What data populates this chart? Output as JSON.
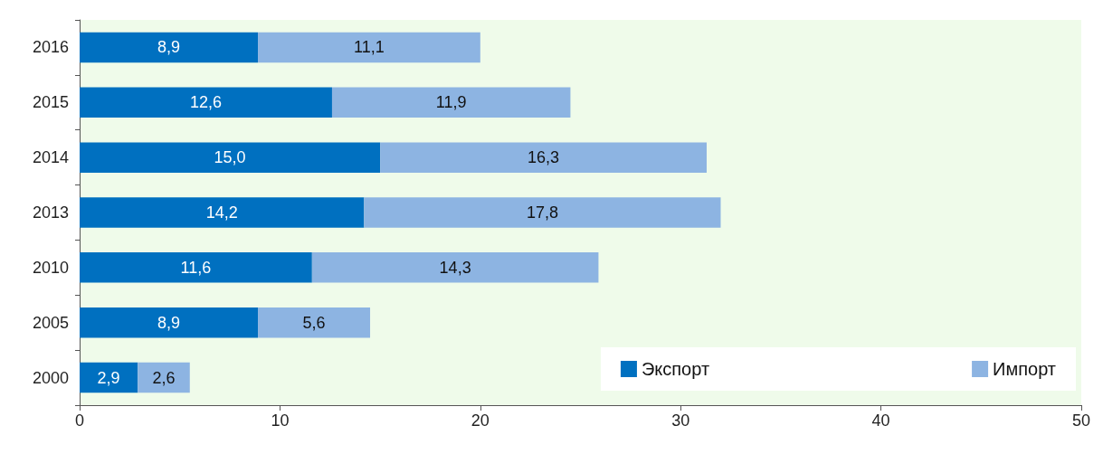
{
  "chart_data": {
    "type": "bar",
    "orientation": "horizontal",
    "stacked": true,
    "categories": [
      "2016",
      "2015",
      "2014",
      "2013",
      "2010",
      "2005",
      "2000"
    ],
    "series": [
      {
        "name": "Экспорт",
        "color": "#0070c0",
        "values": [
          8.9,
          12.6,
          15.0,
          14.2,
          11.6,
          8.9,
          2.9
        ],
        "value_labels": [
          "8,9",
          "12,6",
          "15,0",
          "14,2",
          "11,6",
          "8,9",
          "2,9"
        ]
      },
      {
        "name": "Импорт",
        "color": "#8db4e2",
        "values": [
          11.1,
          11.9,
          16.3,
          17.8,
          14.3,
          5.6,
          2.6
        ],
        "value_labels": [
          "11,1",
          "11,9",
          "16,3",
          "17,8",
          "14,3",
          "5,6",
          "2,6"
        ]
      }
    ],
    "xlim": [
      0,
      50
    ],
    "xticks": [
      0,
      10,
      20,
      30,
      40,
      50
    ],
    "grid": false,
    "legend": "bottom right"
  }
}
